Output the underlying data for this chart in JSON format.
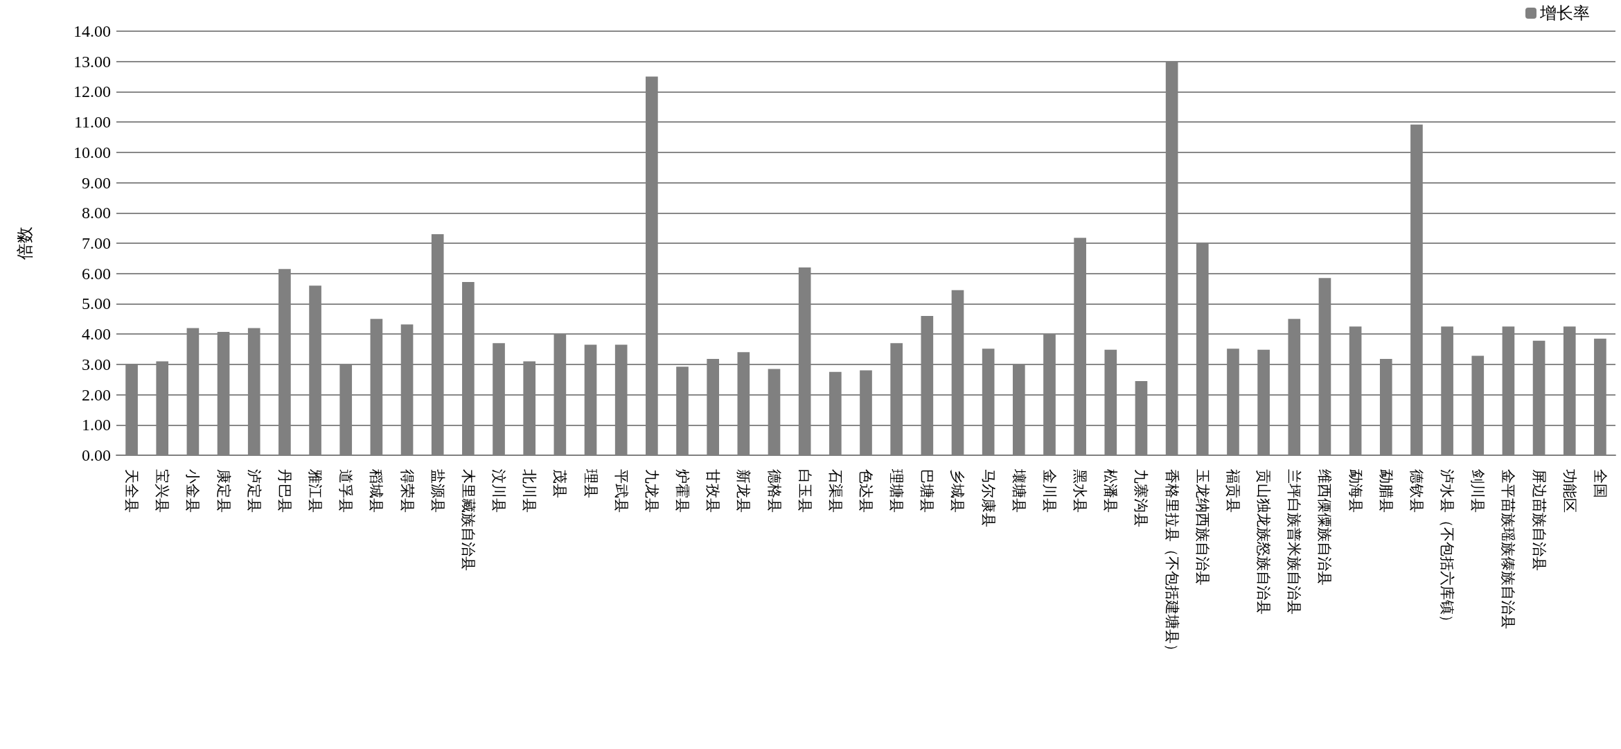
{
  "chart_data": {
    "type": "bar",
    "ylabel": "倍数",
    "categories": [
      "天全县",
      "宝兴县",
      "小金县",
      "康定县",
      "泸定县",
      "丹巴县",
      "雅江县",
      "道孚县",
      "稻城县",
      "得荣县",
      "盐源县",
      "木里藏族自治县",
      "汶川县",
      "北川县",
      "茂县",
      "理县",
      "平武县",
      "九龙县",
      "炉霍县",
      "甘孜县",
      "新龙县",
      "德格县",
      "白玉县",
      "石渠县",
      "色达县",
      "理塘县",
      "巴塘县",
      "乡城县",
      "马尔康县",
      "壤塘县",
      "金川县",
      "黑水县",
      "松潘县",
      "九寨沟县",
      "香格里拉县（不包括建塘县）",
      "玉龙纳西族自治县",
      "福贡县",
      "贡山独龙族怒族自治县",
      "兰坪白族普米族自治县",
      "维西傈僳族自治县",
      "勐海县",
      "勐腊县",
      "德钦县",
      "泸水县（不包括六库镇）",
      "剑川县",
      "金平苗族瑶族傣族自治县",
      "屏边苗族自治县",
      "功能区",
      "全国"
    ],
    "series": [
      {
        "name": "增长率",
        "color": "#808080",
        "values": [
          3.02,
          3.1,
          4.2,
          4.07,
          4.2,
          6.15,
          5.6,
          3.0,
          4.5,
          4.32,
          7.3,
          5.72,
          3.7,
          3.1,
          4.0,
          3.65,
          3.65,
          12.5,
          2.92,
          3.18,
          3.4,
          2.85,
          6.2,
          2.75,
          2.8,
          3.7,
          4.6,
          5.45,
          3.52,
          3.0,
          4.0,
          7.18,
          3.48,
          2.45,
          13.0,
          7.02,
          3.52,
          3.48,
          4.5,
          5.85,
          4.25,
          3.18,
          10.92,
          4.25,
          3.28,
          4.25,
          3.78,
          4.25,
          3.85
        ]
      }
    ],
    "ylim": [
      0,
      14
    ],
    "yticks": [
      {
        "value": 0,
        "label": "0.00"
      },
      {
        "value": 1,
        "label": "1.00"
      },
      {
        "value": 2,
        "label": "2.00"
      },
      {
        "value": 3,
        "label": "3.00"
      },
      {
        "value": 4,
        "label": "4.00"
      },
      {
        "value": 5,
        "label": "5.00"
      },
      {
        "value": 6,
        "label": "6.00"
      },
      {
        "value": 7,
        "label": "7.00"
      },
      {
        "value": 8,
        "label": "8.00"
      },
      {
        "value": 9,
        "label": "9.00"
      },
      {
        "value": 10,
        "label": "10.00"
      },
      {
        "value": 11,
        "label": "11.00"
      },
      {
        "value": 12,
        "label": "12.00"
      },
      {
        "value": 13,
        "label": "13.00"
      },
      {
        "value": 14,
        "label": "14.00"
      }
    ],
    "grid": "y",
    "legend": "top right"
  }
}
